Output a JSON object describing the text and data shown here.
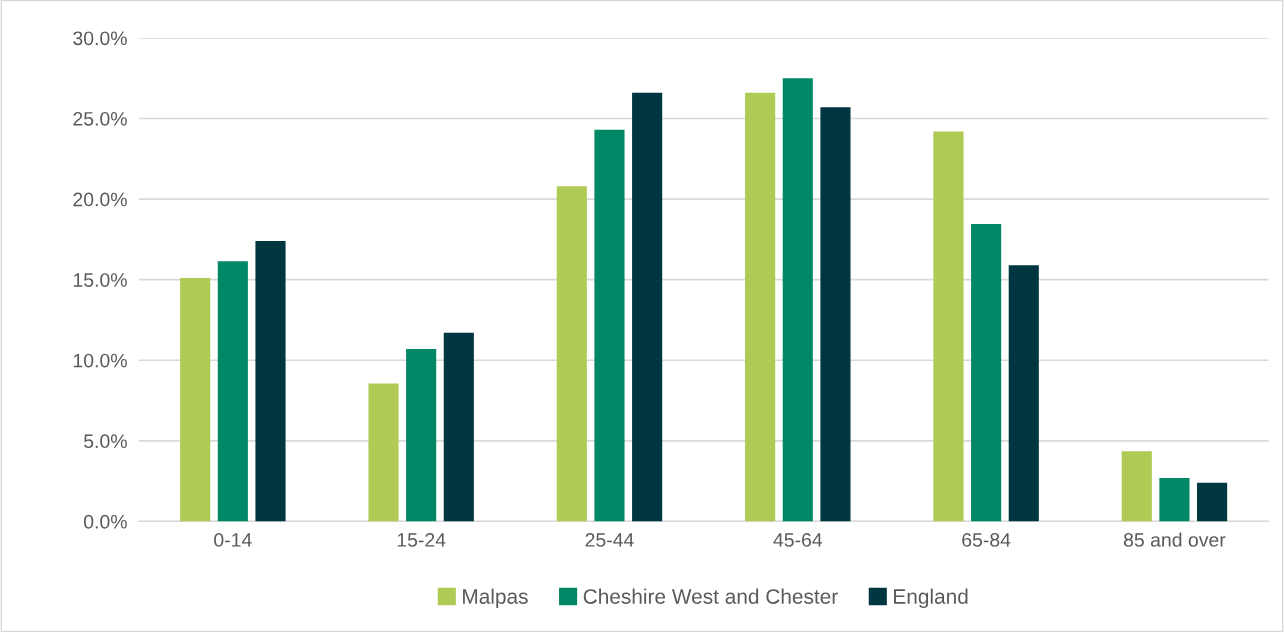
{
  "chart_data": {
    "type": "bar",
    "categories": [
      "0-14",
      "15-24",
      "25-44",
      "45-64",
      "65-84",
      "85 and over"
    ],
    "series": [
      {
        "name": "Malpas",
        "color": "#afca55",
        "values": [
          15.1,
          8.55,
          20.8,
          26.6,
          24.2,
          4.35
        ]
      },
      {
        "name": "Cheshire West and Chester",
        "color": "#008765",
        "values": [
          16.15,
          10.7,
          24.3,
          27.5,
          18.45,
          2.7
        ]
      },
      {
        "name": "England",
        "color": "#003640",
        "values": [
          17.4,
          11.7,
          26.6,
          25.7,
          15.9,
          2.4
        ]
      }
    ],
    "ylim": [
      0,
      30
    ],
    "yticks": [
      {
        "value": 0,
        "label": "0.0%"
      },
      {
        "value": 5,
        "label": "5.0%"
      },
      {
        "value": 10,
        "label": "10.0%"
      },
      {
        "value": 15,
        "label": "15.0%"
      },
      {
        "value": 20,
        "label": "20.0%"
      },
      {
        "value": 25,
        "label": "25.0%"
      },
      {
        "value": 30,
        "label": "30.0%"
      }
    ],
    "grid": "y",
    "legend": "bottom"
  }
}
